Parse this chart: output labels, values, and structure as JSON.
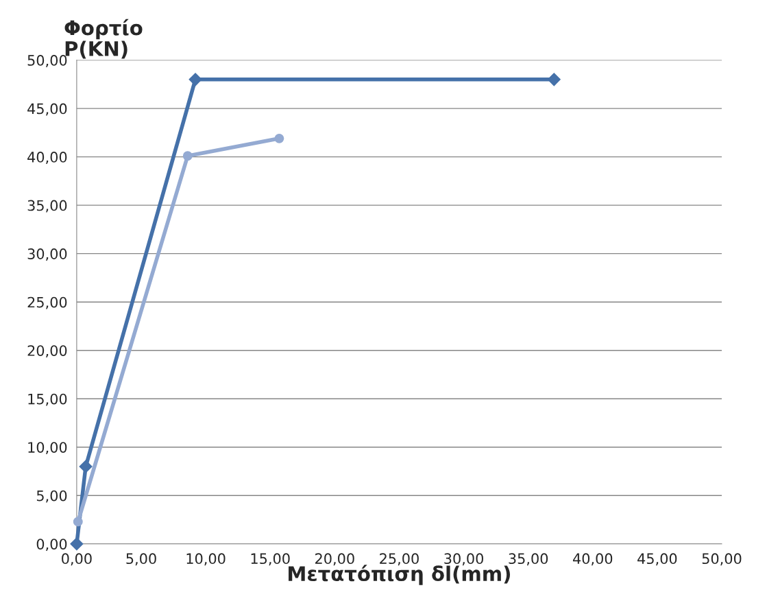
{
  "chart_data": {
    "type": "line",
    "xlabel": "Μετατόπιση δl(mm)",
    "ylabel": "Φορτίο\nP(KN)",
    "series": [
      {
        "color": "#4571a9",
        "marker": "diamond",
        "x": [
          0,
          0.7,
          9.2,
          37.0
        ],
        "values": [
          0,
          8.0,
          48.0,
          48.0
        ]
      },
      {
        "color": "#94aad2",
        "marker": "circle",
        "x": [
          0.1,
          8.6,
          15.7
        ],
        "values": [
          2.3,
          40.1,
          41.9
        ]
      }
    ],
    "xlim": [
      0,
      50
    ],
    "ylim": [
      0,
      50
    ],
    "xticks": [
      {
        "value": 0,
        "label": "0,00"
      },
      {
        "value": 5,
        "label": "5,00"
      },
      {
        "value": 10,
        "label": "10,00"
      },
      {
        "value": 15,
        "label": "15,00"
      },
      {
        "value": 20,
        "label": "20,00"
      },
      {
        "value": 25,
        "label": "25,00"
      },
      {
        "value": 30,
        "label": "30,00"
      },
      {
        "value": 35,
        "label": "35,00"
      },
      {
        "value": 40,
        "label": "40,00"
      },
      {
        "value": 45,
        "label": "45,00"
      },
      {
        "value": 50,
        "label": "50,00"
      }
    ],
    "yticks": [
      {
        "value": 0,
        "label": "0,00"
      },
      {
        "value": 5,
        "label": "5,00"
      },
      {
        "value": 10,
        "label": "10,00"
      },
      {
        "value": 15,
        "label": "15,00"
      },
      {
        "value": 20,
        "label": "20,00"
      },
      {
        "value": 25,
        "label": "25,00"
      },
      {
        "value": 30,
        "label": "30,00"
      },
      {
        "value": 35,
        "label": "35,00"
      },
      {
        "value": 40,
        "label": "40,00"
      },
      {
        "value": 45,
        "label": "45,00"
      },
      {
        "value": 50,
        "label": "50,00"
      }
    ],
    "grid": "y",
    "legend": false
  }
}
